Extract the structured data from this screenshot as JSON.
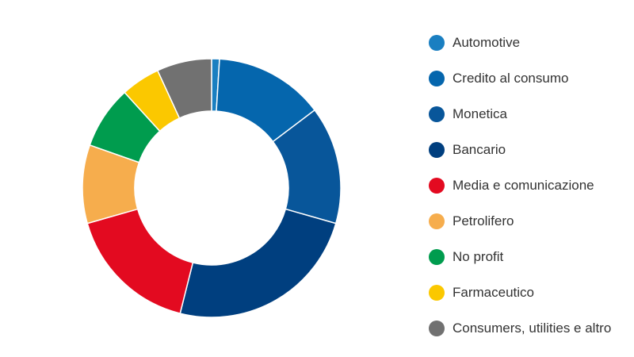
{
  "chart_data": {
    "type": "pie",
    "donut": true,
    "title": "",
    "legend_position": "right",
    "categories": [
      "Automotive",
      "Credito al consumo",
      "Monetica",
      "Bancario",
      "Media e comunicazione",
      "Petrolifero",
      "No profit",
      "Farmaceutico",
      "Consumers, utilities e altro"
    ],
    "values": [
      1,
      14,
      15,
      25,
      17,
      10,
      8,
      5,
      7
    ],
    "colors": [
      "#1a7fc1",
      "#0566ad",
      "#08569a",
      "#003f7f",
      "#e30a20",
      "#f6ad4d",
      "#009c4e",
      "#fbc800",
      "#717171"
    ]
  }
}
